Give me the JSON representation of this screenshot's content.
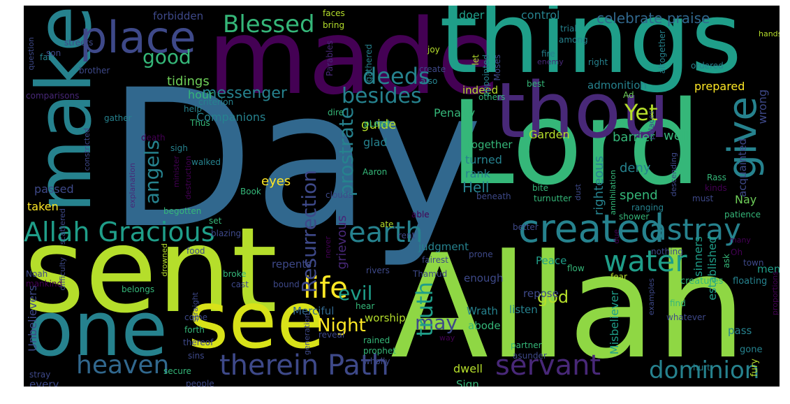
{
  "background": "#000000",
  "palette": [
    "#440154",
    "#482878",
    "#3e4989",
    "#31688e",
    "#26828e",
    "#1f9e89",
    "#35b779",
    "#6ece58",
    "#b5de2b",
    "#fde725"
  ],
  "words": [
    {
      "text": "Day",
      "color": "#31688e"
    },
    {
      "text": "Allah",
      "color": "#8fd744"
    },
    {
      "text": "sent",
      "color": "#b5de2b"
    },
    {
      "text": "made",
      "color": "#440154"
    },
    {
      "text": "things",
      "color": "#1f9e89"
    },
    {
      "text": "Lord",
      "color": "#35b779"
    },
    {
      "text": "make",
      "color": "#26828e"
    },
    {
      "text": "thou",
      "color": "#482878"
    },
    {
      "text": "one",
      "color": "#26828e"
    },
    {
      "text": "see",
      "color": "#d8e219"
    },
    {
      "text": "place",
      "color": "#3e4989"
    },
    {
      "text": "created",
      "color": "#26828e"
    },
    {
      "text": "give",
      "color": "#26828e"
    },
    {
      "text": "Allah Gracious",
      "color": "#1f9e89"
    },
    {
      "text": "heaven",
      "color": "#31688e"
    },
    {
      "text": "therein Path",
      "color": "#3e4989"
    },
    {
      "text": "servant",
      "color": "#482878"
    },
    {
      "text": "dominion",
      "color": "#26828e"
    },
    {
      "text": "water",
      "color": "#1f9e89"
    },
    {
      "text": "astray",
      "color": "#26828e"
    },
    {
      "text": "earth",
      "color": "#26828e"
    },
    {
      "text": "life",
      "color": "#fde725"
    },
    {
      "text": "Blessed",
      "color": "#35b779"
    },
    {
      "text": "deeds",
      "color": "#26828e"
    },
    {
      "text": "good",
      "color": "#35b779"
    },
    {
      "text": "angels",
      "color": "#26828e"
    },
    {
      "text": "besides",
      "color": "#26828e"
    },
    {
      "text": "Resurrection",
      "color": "#3e4989"
    },
    {
      "text": "Yet",
      "color": "#b5de2b"
    },
    {
      "text": "celebrate praise",
      "color": "#31688e"
    },
    {
      "text": "messenger",
      "color": "#26828e"
    },
    {
      "text": "may",
      "color": "#3e4989"
    },
    {
      "text": "truth",
      "color": "#1f9e89"
    },
    {
      "text": "prostrate",
      "color": "#26828e"
    },
    {
      "text": "evil",
      "color": "#1f9e89"
    },
    {
      "text": "Night",
      "color": "#fde725"
    },
    {
      "text": "god",
      "color": "#b5de2b"
    },
    {
      "text": "tidings",
      "color": "#6ece58"
    },
    {
      "text": "hour",
      "color": "#35b779"
    },
    {
      "text": "forbidden",
      "color": "#3e4989"
    },
    {
      "text": "control",
      "color": "#26828e"
    },
    {
      "text": "doer",
      "color": "#1f9e89"
    },
    {
      "text": "admonition",
      "color": "#26828e"
    },
    {
      "text": "prepared",
      "color": "#fde725"
    },
    {
      "text": "wrong",
      "color": "#3e4989"
    },
    {
      "text": "guide",
      "color": "#b5de2b"
    },
    {
      "text": "Penalty",
      "color": "#35b779"
    },
    {
      "text": "indeed",
      "color": "#b5de2b"
    },
    {
      "text": "Garden",
      "color": "#b5de2b"
    },
    {
      "text": "barrier",
      "color": "#35b779"
    },
    {
      "text": "well",
      "color": "#35b779"
    },
    {
      "text": "Companions",
      "color": "#26828e"
    },
    {
      "text": "glad",
      "color": "#26828e"
    },
    {
      "text": "together",
      "color": "#35b779"
    },
    {
      "text": "turned",
      "color": "#26828e"
    },
    {
      "text": "rank",
      "color": "#26828e"
    },
    {
      "text": "Hell",
      "color": "#26828e"
    },
    {
      "text": "righteous",
      "color": "#26828e"
    },
    {
      "text": "deny",
      "color": "#26828e"
    },
    {
      "text": "spend",
      "color": "#35b779"
    },
    {
      "text": "Nay",
      "color": "#6ece58"
    },
    {
      "text": "eyes",
      "color": "#fde725"
    },
    {
      "text": "grievous",
      "color": "#482878"
    },
    {
      "text": "taken",
      "color": "#fde725"
    },
    {
      "text": "passed",
      "color": "#3e4989"
    },
    {
      "text": "Unbelievers",
      "color": "#3e4989"
    },
    {
      "text": "judgment",
      "color": "#26828e"
    },
    {
      "text": "repents",
      "color": "#3e4989"
    },
    {
      "text": "Peace",
      "color": "#1f9e89"
    },
    {
      "text": "enough",
      "color": "#3e4989"
    },
    {
      "text": "repose",
      "color": "#3e4989"
    },
    {
      "text": "listen",
      "color": "#26828e"
    },
    {
      "text": "Wrath",
      "color": "#26828e"
    },
    {
      "text": "worship",
      "color": "#b5de2b"
    },
    {
      "text": "abode",
      "color": "#35b779"
    },
    {
      "text": "Merciful",
      "color": "#31688e"
    },
    {
      "text": "Misbeliever",
      "color": "#1f9e89"
    },
    {
      "text": "sinners",
      "color": "#1f9e89"
    },
    {
      "text": "established",
      "color": "#1f9e89"
    },
    {
      "text": "pass",
      "color": "#26828e"
    },
    {
      "text": "men",
      "color": "#1f9e89"
    },
    {
      "text": "acquainted",
      "color": "#3e4989"
    },
    {
      "text": "dwell",
      "color": "#b5de2b"
    },
    {
      "text": "Sign",
      "color": "#35b779"
    },
    {
      "text": "every",
      "color": "#3e4989"
    },
    {
      "text": "hurt",
      "color": "#26828e"
    },
    {
      "text": "fury",
      "color": "#b5de2b"
    },
    {
      "text": "gone",
      "color": "#26828e"
    },
    {
      "text": "floating",
      "color": "#26828e"
    },
    {
      "text": "creatures",
      "color": "#35b779"
    },
    {
      "text": "faces",
      "color": "#b5de2b"
    },
    {
      "text": "bring",
      "color": "#b5de2b"
    },
    {
      "text": "trial",
      "color": "#26828e"
    },
    {
      "text": "among",
      "color": "#26828e"
    },
    {
      "text": "hands",
      "color": "#b5de2b"
    },
    {
      "text": "gathered",
      "color": "#26828e"
    },
    {
      "text": "joy",
      "color": "#b5de2b"
    },
    {
      "text": "let",
      "color": "#b5de2b"
    },
    {
      "text": "appointed",
      "color": "#26828e"
    },
    {
      "text": "Moses",
      "color": "#3e4989"
    },
    {
      "text": "fire",
      "color": "#26828e"
    },
    {
      "text": "enemy",
      "color": "#482878"
    },
    {
      "text": "right",
      "color": "#26828e"
    },
    {
      "text": "altogether",
      "color": "#26828e"
    },
    {
      "text": "ordered",
      "color": "#26828e"
    },
    {
      "text": "best",
      "color": "#35b779"
    },
    {
      "text": "Ad",
      "color": "#6ece58"
    },
    {
      "text": "others",
      "color": "#35b779"
    },
    {
      "text": "create",
      "color": "#3e4989"
    },
    {
      "text": "also",
      "color": "#26828e"
    },
    {
      "text": "Parables",
      "color": "#482878"
    },
    {
      "text": "question",
      "color": "#3e4989"
    },
    {
      "text": "son",
      "color": "#3e4989"
    },
    {
      "text": "streets",
      "color": "#3e4989"
    },
    {
      "text": "far",
      "color": "#26828e"
    },
    {
      "text": "brother",
      "color": "#3e4989"
    },
    {
      "text": "comparisons",
      "color": "#482878"
    },
    {
      "text": "gather",
      "color": "#26828e"
    },
    {
      "text": "criterion",
      "color": "#26828e"
    },
    {
      "text": "help",
      "color": "#26828e"
    },
    {
      "text": "dire",
      "color": "#35b779"
    },
    {
      "text": "pLead",
      "color": "#35b779"
    },
    {
      "text": "Thus",
      "color": "#35b779"
    },
    {
      "text": "death",
      "color": "#440154"
    },
    {
      "text": "sigh",
      "color": "#26828e"
    },
    {
      "text": "walked",
      "color": "#26828e"
    },
    {
      "text": "minister",
      "color": "#440154"
    },
    {
      "text": "destruction",
      "color": "#440154"
    },
    {
      "text": "constricted",
      "color": "#3e4989"
    },
    {
      "text": "explanation",
      "color": "#482878"
    },
    {
      "text": "Book",
      "color": "#35b779"
    },
    {
      "text": "Aaron",
      "color": "#35b779"
    },
    {
      "text": "palaces",
      "color": "#3e4989"
    },
    {
      "text": "Rass",
      "color": "#35b779"
    },
    {
      "text": "bite",
      "color": "#35b779"
    },
    {
      "text": "turn",
      "color": "#35b779"
    },
    {
      "text": "utter",
      "color": "#35b779"
    },
    {
      "text": "descending",
      "color": "#3e4989"
    },
    {
      "text": "kinds",
      "color": "#440154"
    },
    {
      "text": "must",
      "color": "#3e4989"
    },
    {
      "text": "annihilation",
      "color": "#35b779"
    },
    {
      "text": "beneath",
      "color": "#3e4989"
    },
    {
      "text": "dust",
      "color": "#3e4989"
    },
    {
      "text": "ranging",
      "color": "#26828e"
    },
    {
      "text": "patience",
      "color": "#35b779"
    },
    {
      "text": "shower",
      "color": "#35b779"
    },
    {
      "text": "clouds",
      "color": "#3e4989"
    },
    {
      "text": "begotten",
      "color": "#35b779"
    },
    {
      "text": "set",
      "color": "#35b779"
    },
    {
      "text": "scattered",
      "color": "#3e4989"
    },
    {
      "text": "blazing",
      "color": "#3e4989"
    },
    {
      "text": "able",
      "color": "#440154"
    },
    {
      "text": "ate",
      "color": "#b5de2b"
    },
    {
      "text": "rent",
      "color": "#3e4989"
    },
    {
      "text": "food",
      "color": "#3e4989"
    },
    {
      "text": "never",
      "color": "#440154"
    },
    {
      "text": "due",
      "color": "#440154"
    },
    {
      "text": "fairest",
      "color": "#3e4989"
    },
    {
      "text": "prone",
      "color": "#3e4989"
    },
    {
      "text": "nothing",
      "color": "#3e4989"
    },
    {
      "text": "many",
      "color": "#440154"
    },
    {
      "text": "Oh",
      "color": "#440154"
    },
    {
      "text": "ask",
      "color": "#35b779"
    },
    {
      "text": "town",
      "color": "#3e4989"
    },
    {
      "text": "difficulty",
      "color": "#3e4989"
    },
    {
      "text": "Noah",
      "color": "#3e4989"
    },
    {
      "text": "mankind",
      "color": "#440154"
    },
    {
      "text": "belongs",
      "color": "#35b779"
    },
    {
      "text": "drowned",
      "color": "#b5de2b"
    },
    {
      "text": "broke",
      "color": "#35b779"
    },
    {
      "text": "straight",
      "color": "#3e4989"
    },
    {
      "text": "cast",
      "color": "#3e4989"
    },
    {
      "text": "bound",
      "color": "#3e4989"
    },
    {
      "text": "rivers",
      "color": "#3e4989"
    },
    {
      "text": "Thamud",
      "color": "#3e4989"
    },
    {
      "text": "flow",
      "color": "#35b779"
    },
    {
      "text": "fear",
      "color": "#b5de2b"
    },
    {
      "text": "examples",
      "color": "#3e4989"
    },
    {
      "text": "proportions",
      "color": "#440154"
    },
    {
      "text": "find",
      "color": "#35b779"
    },
    {
      "text": "whatever",
      "color": "#3e4989"
    },
    {
      "text": "hear",
      "color": "#35b779"
    },
    {
      "text": "come",
      "color": "#3e4989"
    },
    {
      "text": "forth",
      "color": "#35b779"
    },
    {
      "text": "generation",
      "color": "#3e4989"
    },
    {
      "text": "reveal",
      "color": "#3e4989"
    },
    {
      "text": "thereof",
      "color": "#3e4989"
    },
    {
      "text": "rained",
      "color": "#35b779"
    },
    {
      "text": "way",
      "color": "#440154"
    },
    {
      "text": "sins",
      "color": "#3e4989"
    },
    {
      "text": "prophet",
      "color": "#35b779"
    },
    {
      "text": "wholly",
      "color": "#3e4989"
    },
    {
      "text": "partner",
      "color": "#35b779"
    },
    {
      "text": "asunder",
      "color": "#3e4989"
    },
    {
      "text": "secure",
      "color": "#35b779"
    },
    {
      "text": "people",
      "color": "#3e4989"
    },
    {
      "text": "stray",
      "color": "#3e4989"
    },
    {
      "text": "better",
      "color": "#3e4989"
    }
  ]
}
